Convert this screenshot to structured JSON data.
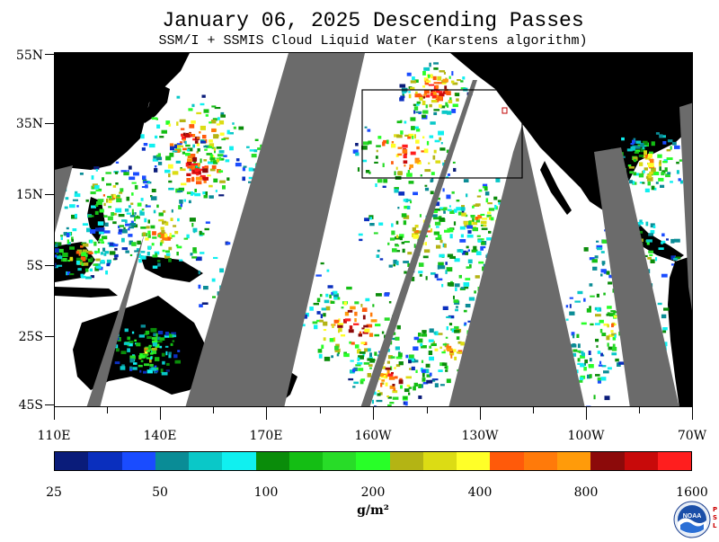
{
  "title": "January 06, 2025  Descending Passes",
  "subtitle": "SSM/I + SSMIS Cloud Liquid Water (Karstens algorithm)",
  "map": {
    "lat_labels": [
      "55N",
      "35N",
      "15N",
      "5S",
      "25S",
      "45S"
    ],
    "lon_labels": [
      "110E",
      "140E",
      "170E",
      "160W",
      "130W",
      "100W",
      "70W"
    ],
    "colors": {
      "land": "#000000",
      "no_data_gap": "#6b6b6b",
      "clear_ocean": "#ffffff",
      "analysis_box": "#000000"
    }
  },
  "legend": {
    "labels": [
      "25",
      "50",
      "100",
      "200",
      "400",
      "800",
      "1600"
    ],
    "units": "g/m²",
    "colors": [
      "#0a1c7a",
      "#0a2fbe",
      "#1a4cff",
      "#0a8c96",
      "#0ac8c8",
      "#10f0f0",
      "#0a8c0a",
      "#14be14",
      "#28dc28",
      "#28ff28",
      "#b4b414",
      "#dcdc14",
      "#ffff28",
      "#ff5a0a",
      "#ff7a0a",
      "#ff9b0a",
      "#8c0a0a",
      "#c80a0a",
      "#ff1e1e"
    ]
  },
  "logo": {
    "text": "NOAA",
    "side_text": "PSL"
  }
}
